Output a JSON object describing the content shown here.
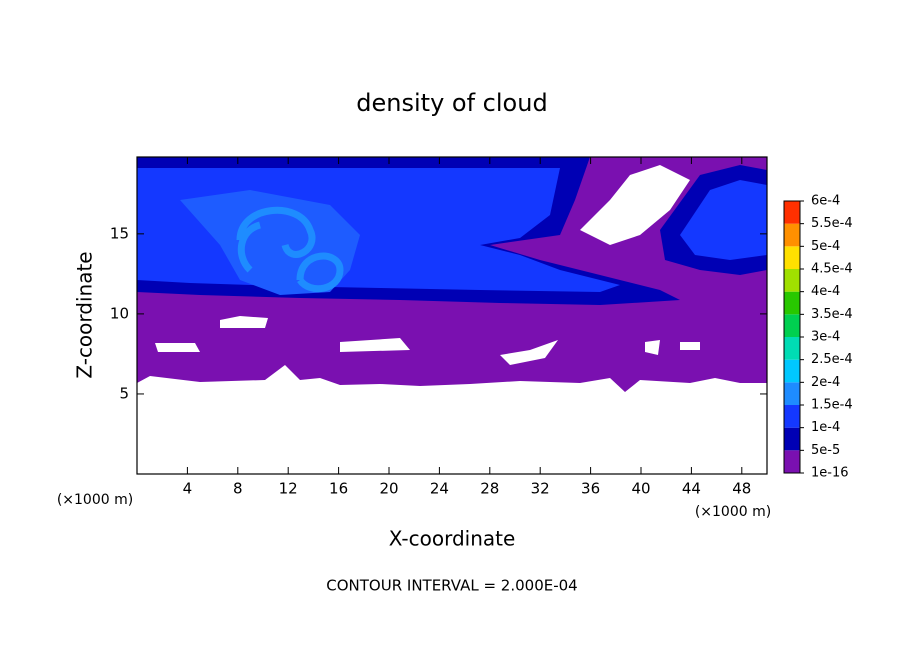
{
  "chart_data": {
    "type": "contour",
    "title": "density of cloud",
    "x_label": "X-coordinate",
    "y_label": "Z-coordinate",
    "y_unit_label": "(×1000 m)",
    "x_unit_label": "(×1000 m)",
    "xlim": [
      0,
      50
    ],
    "ylim": [
      0,
      19.8
    ],
    "xticks": [
      4,
      8,
      12,
      16,
      20,
      24,
      28,
      32,
      36,
      40,
      44,
      48
    ],
    "yticks": [
      5,
      10,
      15
    ],
    "colorbar": {
      "ticks": [
        1e-16,
        {
          "value": 5e-05,
          "label": "5e-5"
        },
        {
          "value": 0.0001,
          "label": "1e-4"
        },
        {
          "value": 0.00015,
          "label": "1.5e-4"
        },
        {
          "value": 0.0002,
          "label": "2e-4"
        },
        {
          "value": 0.00025,
          "label": "2.5e-4"
        },
        {
          "value": 0.0003,
          "label": "3e-4"
        },
        {
          "value": 0.00035,
          "label": "3.5e-4"
        },
        {
          "value": 0.0004,
          "label": "4e-4"
        },
        {
          "value": 0.00045,
          "label": "4.5e-4"
        },
        {
          "value": 0.0005,
          "label": "5e-4"
        },
        {
          "value": 0.00055,
          "label": "5.5e-4"
        },
        {
          "value": 0.0006,
          "label": "6e-4"
        }
      ],
      "colors": [
        "#7a10b0",
        "#0000b4",
        "#1438ff",
        "#1e8cff",
        "#00c8ff",
        "#00dcb4",
        "#00d050",
        "#28c800",
        "#a0e000",
        "#ffe000",
        "#ff9000",
        "#ff3000"
      ]
    },
    "note": "CONTOUR INTERVAL = 2.000E-04"
  }
}
